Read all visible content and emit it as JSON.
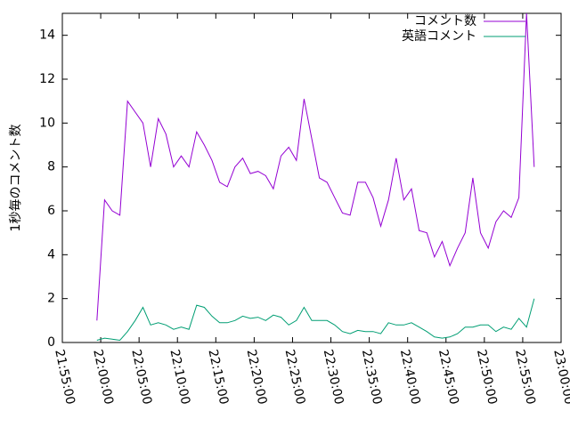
{
  "chart_data": {
    "type": "line",
    "y_label": "1秒毎のコメント数",
    "x": [
      "21:59:30",
      "22:00:30",
      "22:01:30",
      "22:02:30",
      "22:03:30",
      "22:04:30",
      "22:05:30",
      "22:06:30",
      "22:07:30",
      "22:08:30",
      "22:09:30",
      "22:10:30",
      "22:11:30",
      "22:12:30",
      "22:13:30",
      "22:14:30",
      "22:15:30",
      "22:16:30",
      "22:17:30",
      "22:18:30",
      "22:19:30",
      "22:20:30",
      "22:21:30",
      "22:22:30",
      "22:23:30",
      "22:24:30",
      "22:25:30",
      "22:26:30",
      "22:27:30",
      "22:28:30",
      "22:29:30",
      "22:30:30",
      "22:31:30",
      "22:32:30",
      "22:33:30",
      "22:34:30",
      "22:35:30",
      "22:36:30",
      "22:37:30",
      "22:38:30",
      "22:39:30",
      "22:40:30",
      "22:41:30",
      "22:42:30",
      "22:43:30",
      "22:44:30",
      "22:45:30",
      "22:46:30",
      "22:47:30",
      "22:48:30",
      "22:49:30",
      "22:50:30",
      "22:51:30",
      "22:52:30",
      "22:53:30",
      "22:54:30",
      "22:55:30",
      "22:56:30"
    ],
    "series": [
      {
        "name": "コメント数",
        "color": "#9400d3",
        "values": [
          1.0,
          6.5,
          6.0,
          5.8,
          11.0,
          10.5,
          10.0,
          8.0,
          10.2,
          9.5,
          8.0,
          8.5,
          8.0,
          9.6,
          9.0,
          8.3,
          7.3,
          7.1,
          8.0,
          8.4,
          7.7,
          7.8,
          7.6,
          7.0,
          8.5,
          8.9,
          8.3,
          11.1,
          9.3,
          7.5,
          7.3,
          6.6,
          5.9,
          5.8,
          7.3,
          7.3,
          6.6,
          5.3,
          6.5,
          8.4,
          6.5,
          7.0,
          5.1,
          5.0,
          3.9,
          4.6,
          3.5,
          4.3,
          5.0,
          7.5,
          5.0,
          4.3,
          5.5,
          6.0,
          5.7,
          6.6,
          15,
          8.0
        ]
      },
      {
        "name": "英語コメント",
        "color": "#009e73",
        "values": [
          0.1,
          0.2,
          0.15,
          0.1,
          0.5,
          1.0,
          1.6,
          0.8,
          0.9,
          0.8,
          0.6,
          0.7,
          0.6,
          1.7,
          1.6,
          1.2,
          0.9,
          0.9,
          1.0,
          1.2,
          1.1,
          1.15,
          1.0,
          1.25,
          1.15,
          0.8,
          1.0,
          1.6,
          1.0,
          1.0,
          1.0,
          0.8,
          0.5,
          0.4,
          0.55,
          0.5,
          0.5,
          0.4,
          0.9,
          0.8,
          0.8,
          0.9,
          0.7,
          0.5,
          0.25,
          0.2,
          0.25,
          0.4,
          0.7,
          0.7,
          0.8,
          0.8,
          0.5,
          0.7,
          0.6,
          1.1,
          0.7,
          2.0
        ]
      }
    ],
    "xlim": [
      "21:55:00",
      "23:00:00"
    ],
    "xticks": [
      "21:55:00",
      "22:00:00",
      "22:05:00",
      "22:10:00",
      "22:15:00",
      "22:20:00",
      "22:25:00",
      "22:30:00",
      "22:35:00",
      "22:40:00",
      "22:45:00",
      "22:50:00",
      "22:55:00",
      "23:00:00"
    ],
    "ylim": [
      0,
      15
    ],
    "yticks": [
      0,
      2,
      4,
      6,
      8,
      10,
      12,
      14
    ],
    "legend": "top-right"
  }
}
